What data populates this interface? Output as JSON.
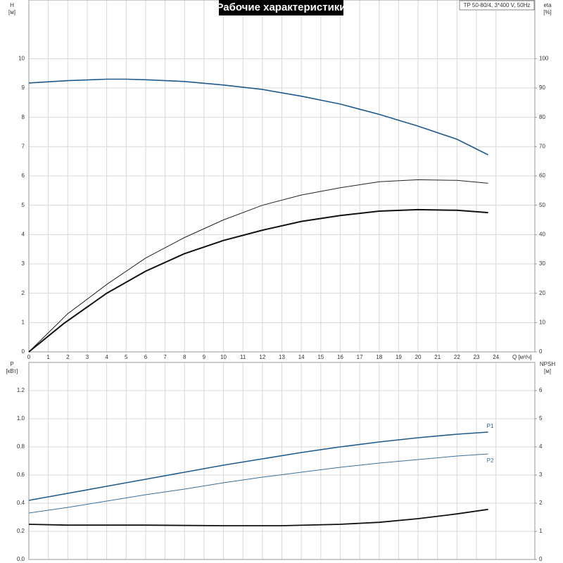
{
  "title": "Рабочие характеристики",
  "model": "TP 50-80/4, 3*400 V, 50Hz",
  "chart_data": [
    {
      "type": "line",
      "xlabel": "Q [м³/ч]",
      "ylabel": "H",
      "yunit": "[м]",
      "y2label": "eta",
      "y2unit": "[%]",
      "xlim": [
        0,
        26
      ],
      "xticks": [
        0,
        1,
        2,
        3,
        4,
        5,
        6,
        7,
        8,
        9,
        10,
        11,
        12,
        13,
        14,
        15,
        16,
        17,
        18,
        19,
        20,
        21,
        22,
        23,
        24
      ],
      "ylim": [
        0,
        12
      ],
      "yticks": [
        0,
        1,
        2,
        3,
        4,
        5,
        6,
        7,
        8,
        9,
        10
      ],
      "y2lim": [
        0,
        120
      ],
      "y2ticks": [
        0,
        10,
        20,
        30,
        40,
        50,
        60,
        70,
        80,
        90,
        100
      ],
      "grid": true,
      "series": [
        {
          "color": "#1f5a8c",
          "width": 1.6,
          "x": [
            0,
            2,
            4,
            5,
            6,
            8,
            10,
            12,
            14,
            16,
            18,
            20,
            22,
            23.6
          ],
          "values": [
            9.17,
            9.25,
            9.3,
            9.3,
            9.28,
            9.22,
            9.1,
            8.95,
            8.72,
            8.45,
            8.1,
            7.7,
            7.25,
            6.72
          ]
        },
        {
          "color": "#222222",
          "width": 1,
          "axis": "y2",
          "x": [
            0,
            2,
            4,
            6,
            8,
            10,
            12,
            14,
            16,
            18,
            20,
            22,
            23.6
          ],
          "values": [
            0,
            13,
            23,
            32,
            39,
            45,
            50,
            53.5,
            56,
            58,
            58.7,
            58.5,
            57.5
          ]
        },
        {
          "color": "#111111",
          "width": 2,
          "axis": "y2",
          "x": [
            0,
            1.8,
            4,
            6,
            8,
            10,
            12,
            14,
            16,
            18,
            20,
            22,
            23.6
          ],
          "values": [
            0,
            9.7,
            20,
            27.5,
            33.5,
            38,
            41.5,
            44.5,
            46.5,
            48,
            48.5,
            48.3,
            47.5
          ]
        }
      ]
    },
    {
      "type": "line",
      "ylabel": "P",
      "yunit": "[кВт]",
      "y2label": "NPSH",
      "y2unit": "[м]",
      "xlim": [
        0,
        26
      ],
      "ylim": [
        0,
        1.4
      ],
      "yticks": [
        {
          "value": 0,
          "label": "0.0"
        },
        0.2,
        0.4,
        0.6,
        0.8,
        {
          "value": 1,
          "label": "1.0"
        },
        1.2
      ],
      "y2lim": [
        0,
        7
      ],
      "y2ticks": [
        0,
        1,
        2,
        3,
        4,
        5,
        6
      ],
      "grid": true,
      "series": [
        {
          "name": "P1",
          "color": "#1f5a8c",
          "width": 1.6,
          "x": [
            0,
            2,
            4,
            6,
            8,
            10,
            12,
            14,
            16,
            18,
            20,
            22,
            23.6
          ],
          "values": [
            0.42,
            0.47,
            0.52,
            0.57,
            0.62,
            0.67,
            0.715,
            0.76,
            0.8,
            0.835,
            0.865,
            0.89,
            0.905
          ]
        },
        {
          "name": "P2",
          "color": "#3d6f99",
          "width": 1,
          "x": [
            0,
            2,
            4,
            6,
            8,
            10,
            12,
            14,
            16,
            18,
            20,
            22,
            23.6
          ],
          "values": [
            0.33,
            0.37,
            0.415,
            0.46,
            0.5,
            0.545,
            0.585,
            0.62,
            0.655,
            0.685,
            0.71,
            0.735,
            0.75
          ]
        },
        {
          "color": "#111111",
          "width": 1.8,
          "axis": "y2",
          "x": [
            0,
            2,
            6,
            10,
            13,
            16,
            18,
            20,
            22,
            23.6
          ],
          "values": [
            1.25,
            1.22,
            1.22,
            1.2,
            1.2,
            1.25,
            1.32,
            1.45,
            1.62,
            1.78
          ]
        }
      ]
    }
  ]
}
